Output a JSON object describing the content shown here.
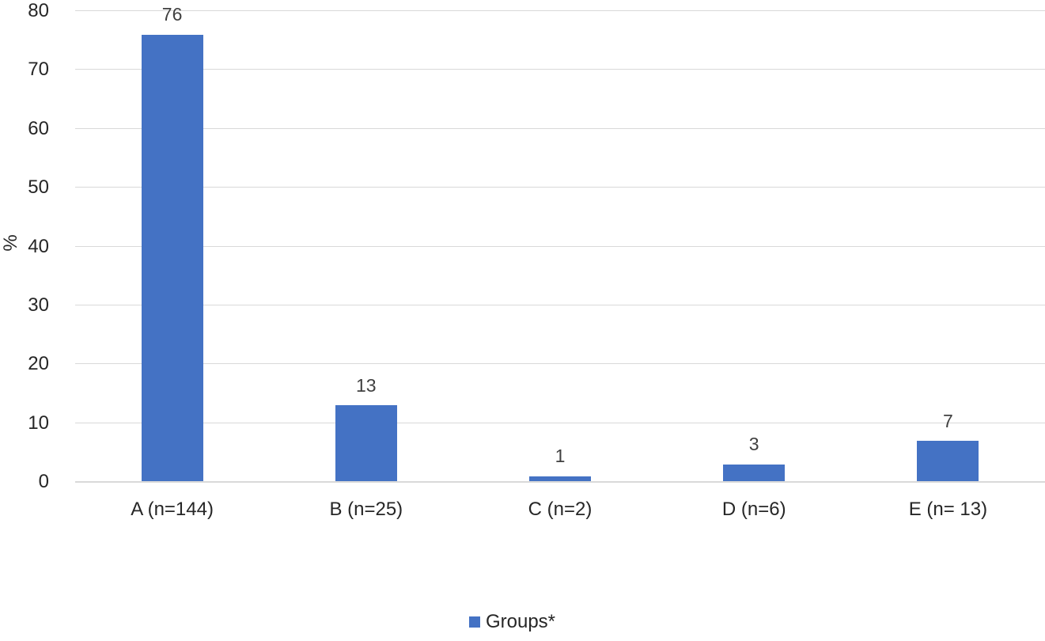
{
  "chart_data": {
    "type": "bar",
    "title": "",
    "xlabel": "",
    "ylabel": "%",
    "categories": [
      "A (n=144)",
      "B (n=25)",
      "C (n=2)",
      "D (n=6)",
      "E (n= 13)"
    ],
    "values": [
      76,
      13,
      1,
      3,
      7
    ],
    "data_labels": [
      "76",
      "13",
      "1",
      "3",
      "7"
    ],
    "ylim": [
      0,
      80
    ],
    "yticks": [
      0,
      10,
      20,
      30,
      40,
      50,
      60,
      70,
      80
    ],
    "grid": true,
    "legend": {
      "position": "bottom",
      "entries": [
        {
          "label": "Groups*",
          "swatch": "legend-color-swatch"
        }
      ]
    },
    "colors": {
      "bar": "#4472c4",
      "gridline": "#d9d9d9",
      "axis_line": "#d9d9d9",
      "tick_label": "#262626",
      "category_label": "#262626",
      "data_label": "#404040",
      "background": "#ffffff"
    }
  }
}
